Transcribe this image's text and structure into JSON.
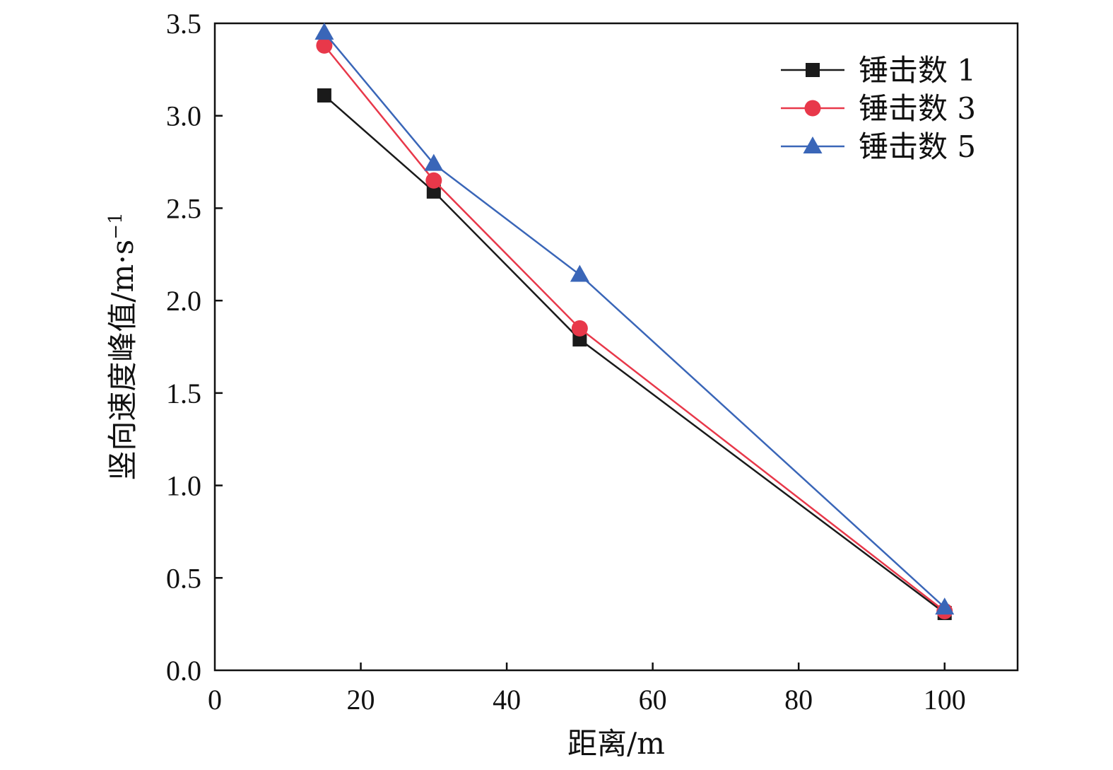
{
  "chart_data": {
    "type": "line",
    "title": "",
    "xlabel": "距离/m",
    "ylabel": "竖向速度峰值/m·s",
    "ylabel_sup": "−1",
    "xlim": [
      0,
      110
    ],
    "ylim": [
      0,
      3.5
    ],
    "xticks": [
      0,
      20,
      40,
      60,
      80,
      100
    ],
    "xtick_labels": [
      "0",
      "20",
      "40",
      "60",
      "80",
      "100"
    ],
    "yticks": [
      0,
      0.5,
      1.0,
      1.5,
      2.0,
      2.5,
      3.0,
      3.5
    ],
    "ytick_labels": [
      "0.0",
      "0.5",
      "1.0",
      "1.5",
      "2.0",
      "2.5",
      "3.0",
      "3.5"
    ],
    "grid": false,
    "legend_position": "top-right",
    "x": [
      15,
      30,
      50,
      100
    ],
    "series": [
      {
        "name": "锤击数 1",
        "values": [
          3.11,
          2.59,
          1.79,
          0.31
        ],
        "color": "#1a1a1a",
        "marker": "square"
      },
      {
        "name": "锤击数 3",
        "values": [
          3.38,
          2.65,
          1.85,
          0.32
        ],
        "color": "#e8384a",
        "marker": "circle"
      },
      {
        "name": "锤击数 5",
        "values": [
          3.45,
          2.74,
          2.14,
          0.34
        ],
        "color": "#3a66b8",
        "marker": "triangle"
      }
    ]
  }
}
